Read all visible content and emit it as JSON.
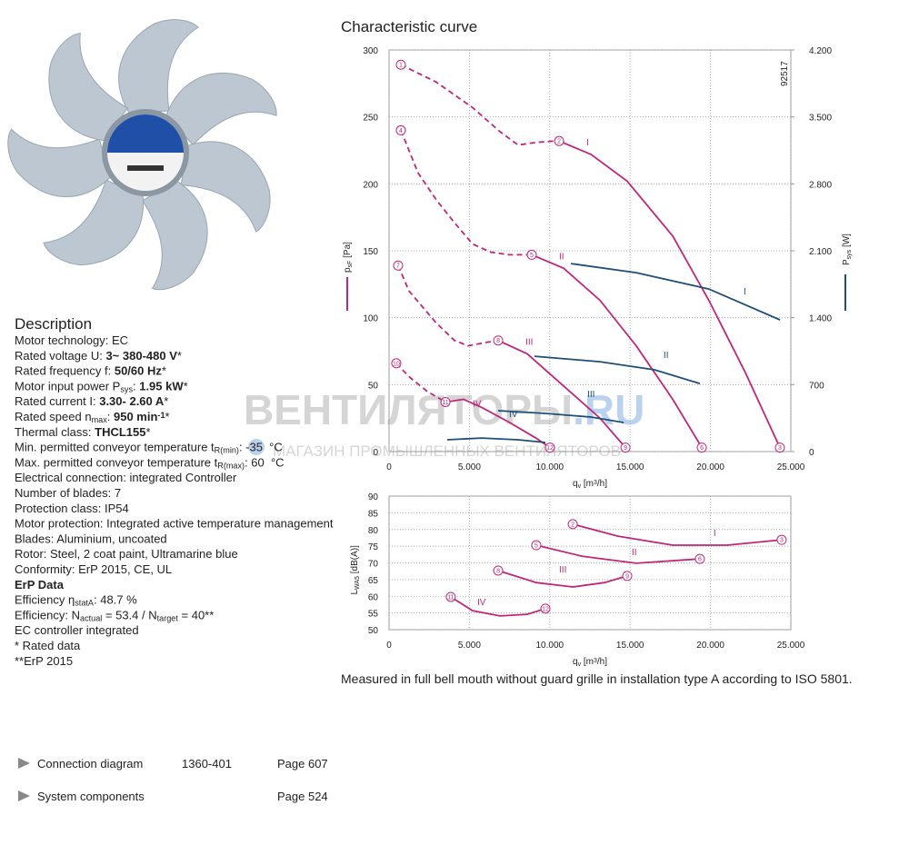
{
  "description": {
    "title": "Description",
    "lines": [
      [
        {
          "text": "Motor technology: EC"
        }
      ],
      [
        {
          "text": "Rated voltage U: "
        },
        {
          "text": "3~ 380-480 V",
          "bold": true
        },
        {
          "text": "*"
        }
      ],
      [
        {
          "text": "Rated frequency f: "
        },
        {
          "text": "50/60 Hz",
          "bold": true
        },
        {
          "text": "*"
        }
      ],
      [
        {
          "text": "Motor input power P"
        },
        {
          "text": "sys",
          "sub": true
        },
        {
          "text": ": "
        },
        {
          "text": "1.95 kW",
          "bold": true
        },
        {
          "text": "*"
        }
      ],
      [
        {
          "text": "Rated current I: "
        },
        {
          "text": "3.30- 2.60 A",
          "bold": true
        },
        {
          "text": "*"
        }
      ],
      [
        {
          "text": "Rated speed n"
        },
        {
          "text": "max",
          "sub": true
        },
        {
          "text": ": "
        },
        {
          "text": "950 min",
          "bold": true
        },
        {
          "text": "-1",
          "sup": true,
          "bold": true
        },
        {
          "text": "*"
        }
      ],
      [
        {
          "text": "Thermal class: "
        },
        {
          "text": "THCL155",
          "bold": true
        },
        {
          "text": "*"
        }
      ],
      [
        {
          "text": "Min. permitted conveyor temperature t"
        },
        {
          "text": "R(min)",
          "sub": true
        },
        {
          "text": ": -35  °C"
        }
      ],
      [
        {
          "text": "Max. permitted conveyor temperature t"
        },
        {
          "text": "R(max)",
          "sub": true
        },
        {
          "text": ": 60  °C"
        }
      ],
      [
        {
          "text": "Electrical connection: integrated Controller"
        }
      ],
      [
        {
          "text": "Number of blades: 7"
        }
      ],
      [
        {
          "text": "Protection class: IP54"
        }
      ],
      [
        {
          "text": "Motor protection: Integrated active temperature management"
        }
      ],
      [
        {
          "text": "Blades: Aluminium, uncoated"
        }
      ],
      [
        {
          "text": "Rotor: Steel, 2 coat paint, Ultramarine blue"
        }
      ],
      [
        {
          "text": "Conformity: ErP 2015, CE, UL"
        }
      ],
      [
        {
          "text": "ErP Data",
          "bold": true
        }
      ],
      [
        {
          "text": "Efficiency η"
        },
        {
          "text": "statA",
          "sub": true
        },
        {
          "text": ": 48.7 %"
        }
      ],
      [
        {
          "text": "Efficiency: N"
        },
        {
          "text": "actual",
          "sub": true
        },
        {
          "text": " = 53.4 / N"
        },
        {
          "text": "target",
          "sub": true
        },
        {
          "text": " = 40**"
        }
      ],
      [
        {
          "text": "EC controller integrated"
        }
      ],
      [
        {
          "text": "* Rated data"
        }
      ],
      [
        {
          "text": "**ErP 2015"
        }
      ]
    ]
  },
  "links": [
    {
      "label": "Connection diagram",
      "code": "1360-401",
      "page": "Page 607"
    },
    {
      "label": "System components",
      "page": "Page 524"
    }
  ],
  "watermark": {
    "title": "ВЕНТИЛЯТОРЫ",
    "domain": ".RU",
    "subtitle": "МАГАЗИН ПРОМЫШЛЕННЫХ ВЕНТИЛЯТОРОВ"
  },
  "caption": "Measured in full bell mouth without guard grille in installation type A according to ISO 5801.",
  "chart_data": [
    {
      "type": "line",
      "title": "Characteristic curve",
      "code": "92517",
      "x_label": [
        {
          "text": "q"
        },
        {
          "text": "v",
          "sub": true
        },
        {
          "text": " [m"
        },
        {
          "text": "3",
          "sup": true
        },
        {
          "text": "/h]"
        }
      ],
      "y_label": [
        {
          "text": "p"
        },
        {
          "text": "sF",
          "sub": true
        },
        {
          "text": " [Pa]"
        }
      ],
      "y2_label": [
        {
          "text": "P"
        },
        {
          "text": "sys",
          "sub": true
        },
        {
          "text": " [W]"
        }
      ],
      "xlim": [
        0,
        25000
      ],
      "xticks": [
        0,
        {
          "value": 5000,
          "label": "5.000"
        },
        {
          "value": 10000,
          "label": "10.000"
        },
        {
          "value": 15000,
          "label": "15.000"
        },
        {
          "value": 20000,
          "label": "20.000"
        },
        {
          "value": 25000,
          "label": "25.000"
        }
      ],
      "ylim": [
        0,
        300
      ],
      "yticks": [
        0,
        50,
        100,
        150,
        200,
        250,
        300
      ],
      "y2lim": [
        0,
        4200
      ],
      "y2ticks": [
        0,
        700,
        {
          "value": 1400,
          "label": "1.400"
        },
        {
          "value": 2100,
          "label": "2.100"
        },
        {
          "value": 2800,
          "label": "2.800"
        },
        {
          "value": 3500,
          "label": "3.500"
        },
        {
          "value": 4200,
          "label": "4.200"
        }
      ],
      "grid": true,
      "series": [
        {
          "color": "#c0267a",
          "dashed": true,
          "x": [
            735,
            2940,
            5200,
            6900,
            8030,
            9160,
            10290,
            10580
          ],
          "values": [
            289,
            276,
            257,
            239,
            229,
            231,
            232,
            232
          ]
        },
        {
          "name": "I",
          "color": "#c0267a",
          "x": [
            10580,
            12560,
            14820,
            17650,
            19900,
            22170,
            24320
          ],
          "values": [
            232,
            222,
            202,
            161,
            113,
            59,
            3
          ]
        },
        {
          "color": "#c0267a",
          "dashed": true,
          "x": [
            735,
            1810,
            2940,
            4070,
            5200,
            6330,
            7460,
            8880
          ],
          "values": [
            240,
            208,
            188,
            171,
            155,
            149,
            147,
            147
          ]
        },
        {
          "name": "II",
          "color": "#c0267a",
          "x": [
            8880,
            10860,
            13120,
            15380,
            17650,
            19460
          ],
          "values": [
            147,
            137,
            113,
            79,
            39,
            3
          ]
        },
        {
          "color": "#c0267a",
          "dashed": true,
          "x": [
            565,
            1240,
            2940,
            4070,
            4920,
            5770,
            6790
          ],
          "values": [
            139,
            120,
            96,
            83,
            79,
            81,
            83
          ]
        },
        {
          "name": "III",
          "color": "#c0267a",
          "x": [
            6790,
            8600,
            10860,
            13120,
            14710
          ],
          "values": [
            83,
            73,
            49,
            25,
            3
          ]
        },
        {
          "color": "#c0267a",
          "dashed": true,
          "x": [
            450,
            1240,
            2370,
            3510
          ],
          "values": [
            66,
            56,
            45,
            37
          ]
        },
        {
          "name": "IV",
          "color": "#c0267a",
          "x": [
            3510,
            4640,
            5770,
            7460,
            9160,
            10010
          ],
          "values": [
            37,
            39,
            33,
            22,
            10,
            3
          ]
        },
        {
          "name": "I",
          "color": "#1f4e79",
          "axis": "y2",
          "x": [
            11310,
            15380,
            19900,
            24320
          ],
          "values": [
            1966,
            1871,
            1700,
            1378
          ]
        },
        {
          "name": "II",
          "color": "#1f4e79",
          "axis": "y2",
          "x": [
            9050,
            13120,
            16520,
            19340
          ],
          "values": [
            997,
            940,
            855,
            712
          ]
        },
        {
          "name": "III",
          "color": "#1f4e79",
          "axis": "y2",
          "x": [
            6790,
            9730,
            12560,
            14600
          ],
          "values": [
            428,
            399,
            361,
            304
          ]
        },
        {
          "name": "IV",
          "color": "#1f4e79",
          "axis": "y2",
          "x": [
            3620,
            5770,
            8030,
            9730
          ],
          "values": [
            124,
            142,
            124,
            95
          ]
        }
      ],
      "markers": [
        {
          "label": "1",
          "x": 735,
          "y": 289
        },
        {
          "label": "2",
          "x": 10580,
          "y": 232
        },
        {
          "label": "3",
          "x": 24320,
          "y": 3
        },
        {
          "label": "4",
          "x": 735,
          "y": 240
        },
        {
          "label": "5",
          "x": 8880,
          "y": 147
        },
        {
          "label": "6",
          "x": 19460,
          "y": 3
        },
        {
          "label": "7",
          "x": 565,
          "y": 139
        },
        {
          "label": "8",
          "x": 6790,
          "y": 83
        },
        {
          "label": "9",
          "x": 14710,
          "y": 3
        },
        {
          "label": "10",
          "x": 450,
          "y": 66
        },
        {
          "label": "11",
          "x": 3510,
          "y": 37
        },
        {
          "label": "12",
          "x": 10010,
          "y": 3
        }
      ]
    },
    {
      "type": "line",
      "x_label": [
        {
          "text": "q"
        },
        {
          "text": "v",
          "sub": true
        },
        {
          "text": " [m"
        },
        {
          "text": "3",
          "sup": true
        },
        {
          "text": "/h]"
        }
      ],
      "y_label": [
        {
          "text": "L"
        },
        {
          "text": "WA5",
          "sub": true
        },
        {
          "text": " [dB(A)]"
        }
      ],
      "xlim": [
        0,
        25000
      ],
      "xticks": [
        0,
        {
          "value": 5000,
          "label": "5.000"
        },
        {
          "value": 10000,
          "label": "10.000"
        },
        {
          "value": 15000,
          "label": "15.000"
        },
        {
          "value": 20000,
          "label": "20.000"
        },
        {
          "value": 25000,
          "label": "25.000"
        }
      ],
      "ylim": [
        50,
        90
      ],
      "yticks": [
        50,
        55,
        60,
        65,
        70,
        75,
        80,
        85,
        90
      ],
      "grid": true,
      "series": [
        {
          "name": "I",
          "color": "#c0267a",
          "x": [
            11430,
            14250,
            17650,
            21040,
            24430
          ],
          "values": [
            81.6,
            78.0,
            75.3,
            75.3,
            76.9
          ]
        },
        {
          "name": "II",
          "color": "#c0267a",
          "x": [
            9160,
            11990,
            15380,
            19340
          ],
          "values": [
            75.3,
            72.0,
            69.9,
            71.2
          ]
        },
        {
          "name": "III",
          "color": "#c0267a",
          "x": [
            6790,
            9160,
            11430,
            13410,
            14820
          ],
          "values": [
            67.7,
            64.1,
            62.8,
            64.1,
            66.1
          ]
        },
        {
          "name": "IV",
          "color": "#c0267a",
          "x": [
            3840,
            5200,
            6900,
            8600,
            9730
          ],
          "values": [
            59.8,
            55.7,
            54.1,
            54.6,
            56.3
          ]
        }
      ],
      "markers": [
        {
          "label": "2",
          "x": 11430,
          "y": 81.6
        },
        {
          "label": "3",
          "x": 24430,
          "y": 76.9
        },
        {
          "label": "5",
          "x": 9160,
          "y": 75.3
        },
        {
          "label": "6",
          "x": 19340,
          "y": 71.2
        },
        {
          "label": "8",
          "x": 6790,
          "y": 67.7
        },
        {
          "label": "9",
          "x": 14820,
          "y": 66.1
        },
        {
          "label": "11",
          "x": 3840,
          "y": 59.8
        },
        {
          "label": "12",
          "x": 9730,
          "y": 56.3
        }
      ]
    }
  ]
}
